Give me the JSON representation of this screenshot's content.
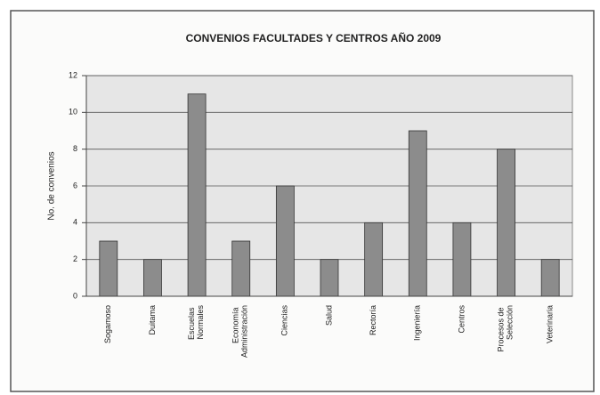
{
  "chart_data": {
    "type": "bar",
    "title": "CONVENIOS FACULTADES Y CENTROS AÑO 2009",
    "y_label": "No. de convenios",
    "categories": [
      "Sogamoso",
      "Duitama",
      "Escuelas Normales",
      "Economía Administración",
      "Ciencias",
      "Salud",
      "Rectoría",
      "Ingeniería",
      "Centros",
      "Procesos de Selección",
      "Veterinaria"
    ],
    "values": [
      3,
      2,
      11,
      3,
      6,
      2,
      4,
      9,
      4,
      8,
      2
    ],
    "color": "#8c8c8c",
    "ylim": [
      0,
      12
    ],
    "yticks": [
      0,
      2,
      4,
      6,
      8,
      10,
      12
    ],
    "grid": true
  }
}
